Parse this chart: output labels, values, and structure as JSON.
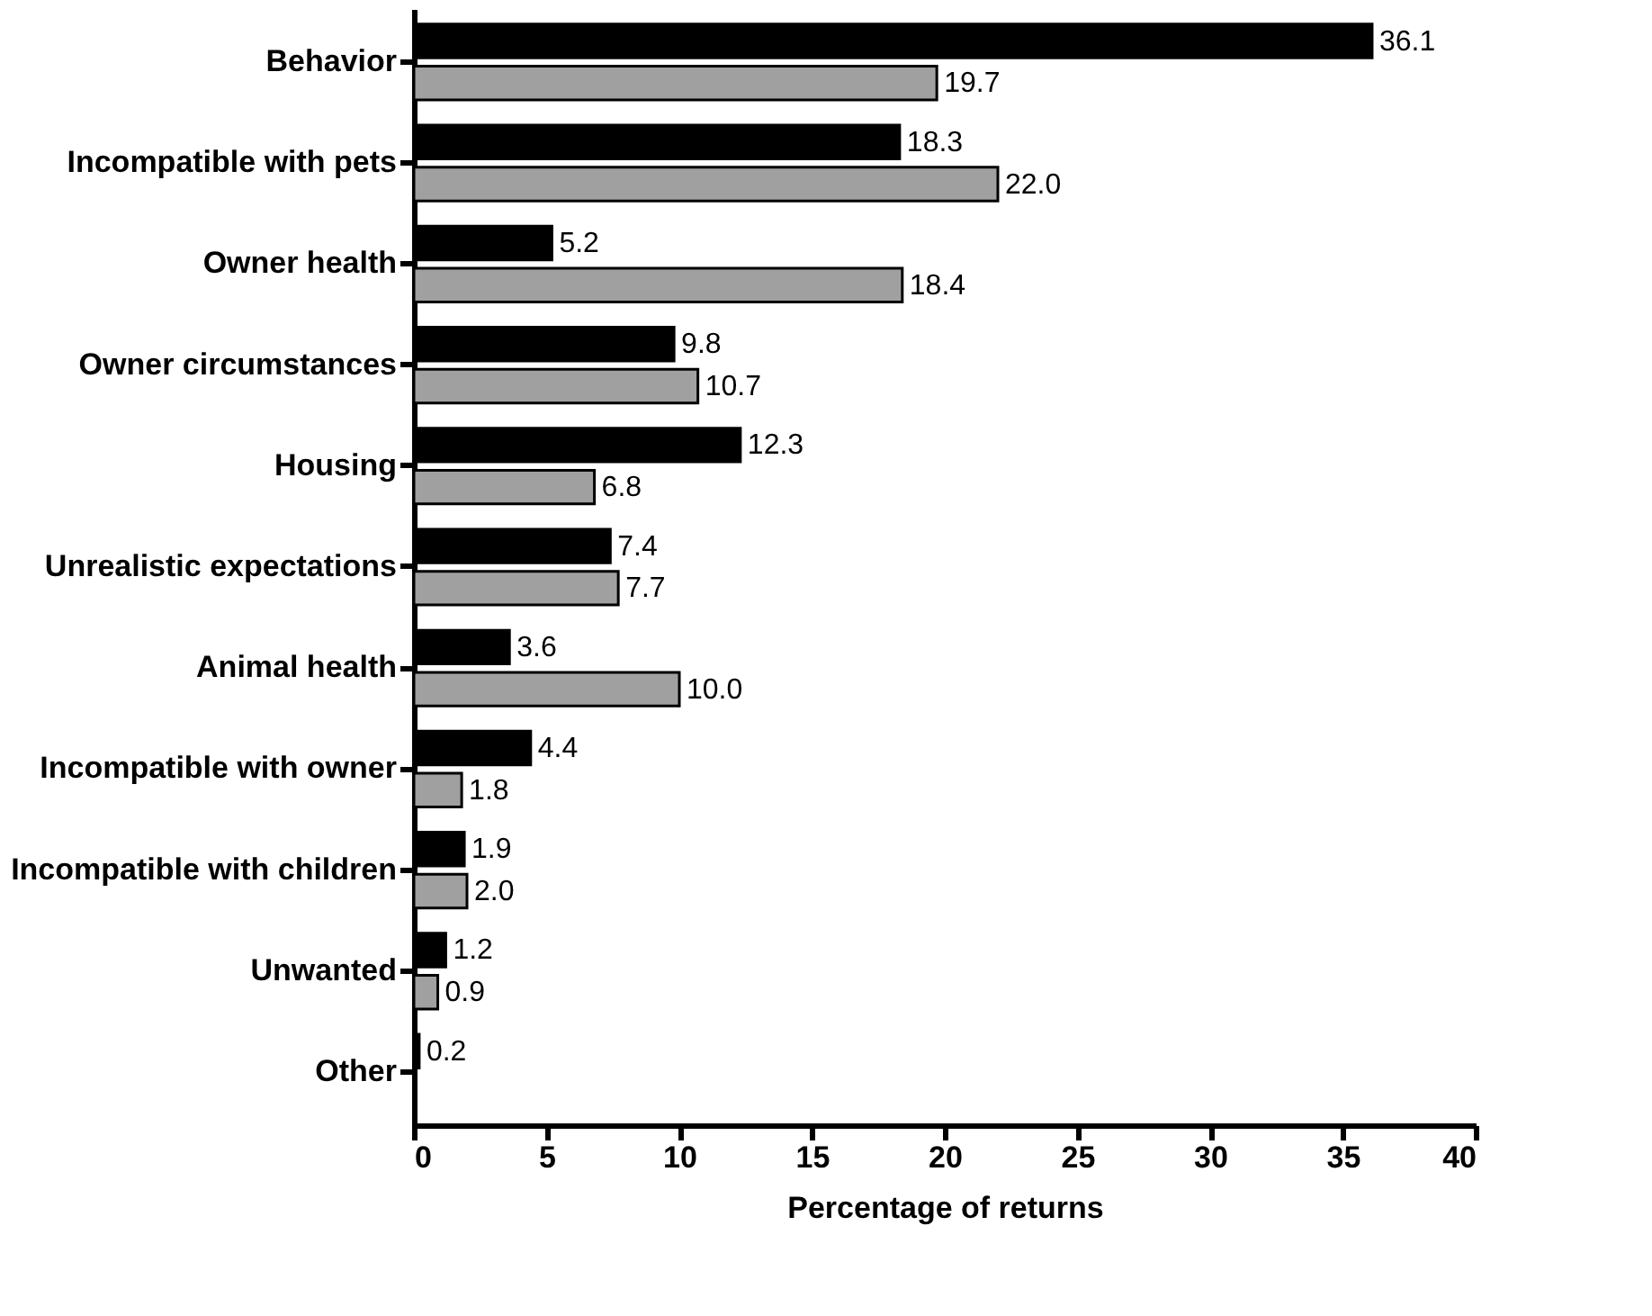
{
  "chart_data": {
    "type": "bar",
    "orientation": "horizontal",
    "xlabel": "Percentage of returns",
    "categories": [
      "Behavior",
      "Incompatible with pets",
      "Owner health",
      "Owner circumstances",
      "Housing",
      "Unrealistic expectations",
      "Animal health",
      "Incompatible with owner",
      "Incompatible with children",
      "Unwanted",
      "Other"
    ],
    "series": [
      {
        "color": "#000000",
        "values": [
          36.1,
          18.3,
          5.2,
          9.8,
          12.3,
          7.4,
          3.6,
          4.4,
          1.9,
          1.2,
          0.2
        ],
        "value_labels": [
          "36.1",
          "18.3",
          "5.2",
          "9.8",
          "12.3",
          "7.4",
          "3.6",
          "4.4",
          "1.9",
          "1.2",
          "0.2"
        ]
      },
      {
        "color": "#a0a0a0",
        "values": [
          19.7,
          22.0,
          18.4,
          10.7,
          6.8,
          7.7,
          10.0,
          1.8,
          2.0,
          0.9,
          null
        ],
        "value_labels": [
          "19.7",
          "22.0",
          "18.4",
          "10.7",
          "6.8",
          "7.7",
          "10.0",
          "1.8",
          "2.0",
          "0.9",
          null
        ]
      }
    ],
    "xlim": [
      0,
      40
    ],
    "xticks": [
      0,
      5,
      10,
      15,
      20,
      25,
      30,
      35,
      40
    ],
    "grid": false
  }
}
